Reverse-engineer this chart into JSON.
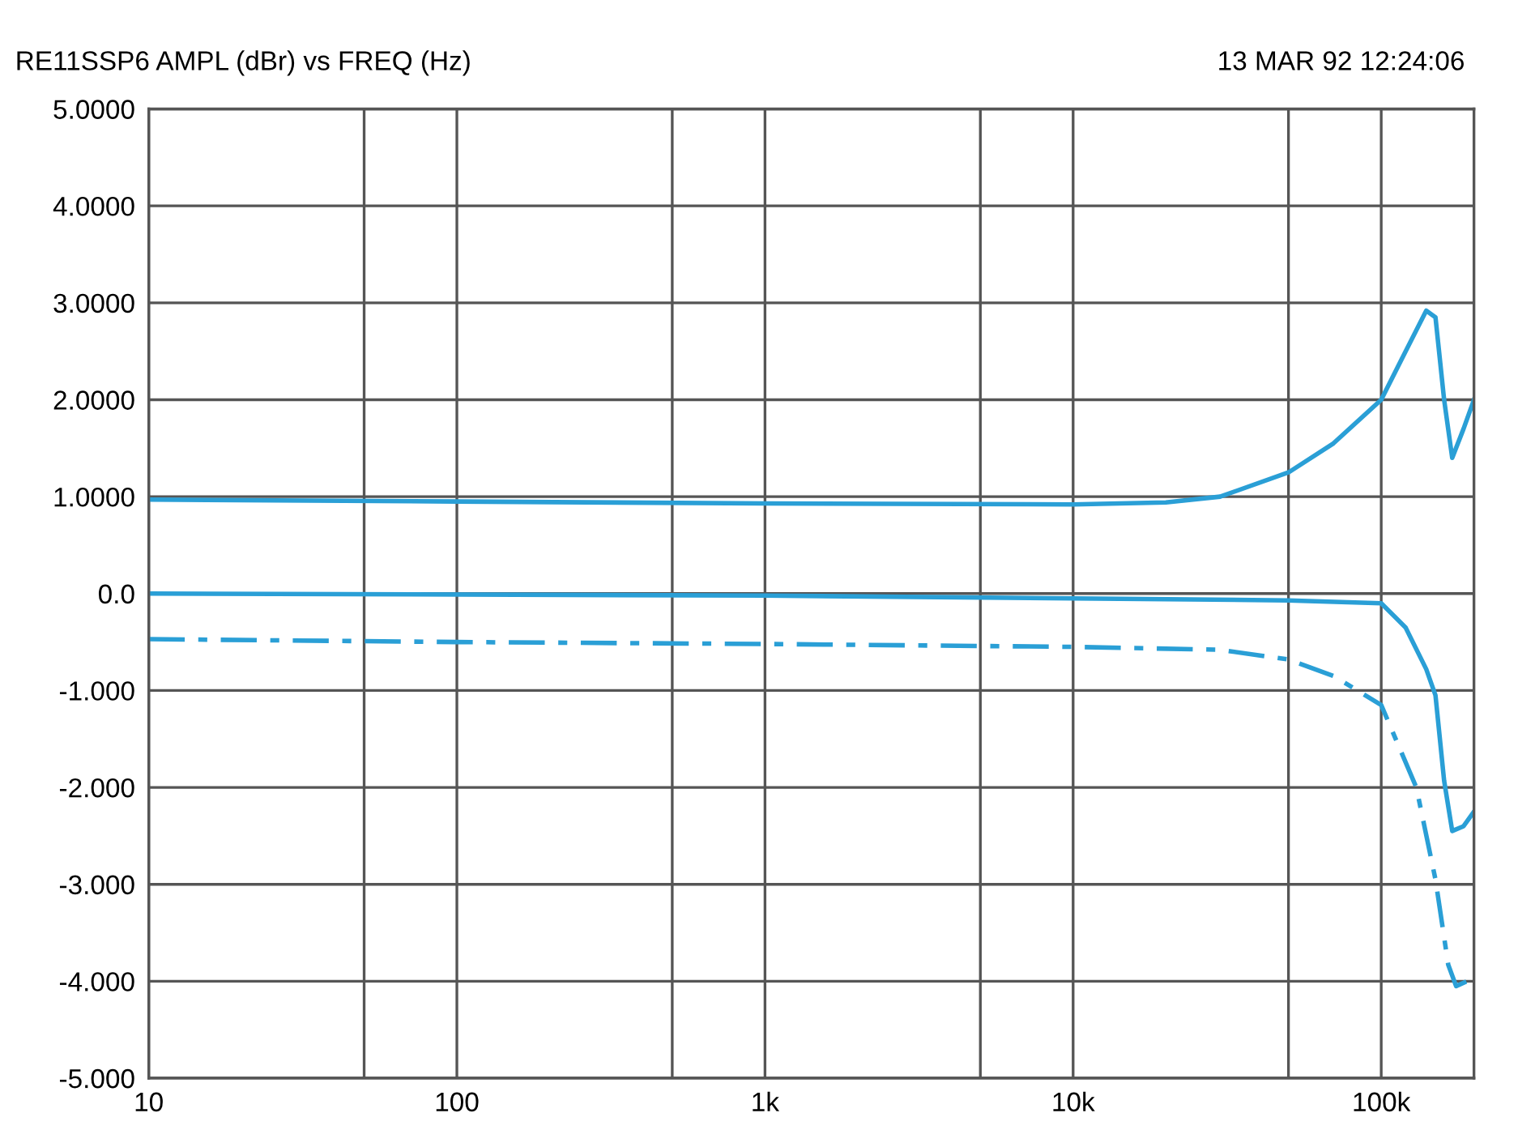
{
  "chart_data": {
    "type": "line",
    "title": "RE11SSP6 AMPL (dBr) vs FREQ (Hz)",
    "annotations": [
      "13 MAR 92 12:24:06"
    ],
    "log": "x",
    "grid": true,
    "xlim": [
      10,
      200000
    ],
    "xticks": [
      10,
      {
        "value": 50,
        "label": null
      },
      {
        "value": 100,
        "label": "100"
      },
      {
        "value": 500,
        "label": null
      },
      {
        "value": 1000,
        "label": "1k"
      },
      {
        "value": 5000,
        "label": null
      },
      {
        "value": 10000,
        "label": "10k"
      },
      {
        "value": 50000,
        "label": null
      },
      {
        "value": 100000,
        "label": "100k"
      },
      {
        "value": 200000,
        "label": null
      }
    ],
    "ylim": [
      -5,
      5
    ],
    "yticks": [
      {
        "value": 5,
        "label": "5.0000"
      },
      {
        "value": 4,
        "label": "4.0000"
      },
      {
        "value": 3,
        "label": "3.0000"
      },
      {
        "value": 2,
        "label": "2.0000"
      },
      {
        "value": 1,
        "label": "1.0000"
      },
      {
        "value": 0,
        "label": "0.0"
      },
      {
        "value": -1,
        "label": "-1.000"
      },
      {
        "value": -2,
        "label": "-2.000"
      },
      {
        "value": -3,
        "label": "-3.000"
      },
      {
        "value": -4,
        "label": "-4.000"
      },
      {
        "value": -5,
        "label": "-5.000"
      }
    ],
    "series": [
      {
        "color": "#2a9fd6",
        "line_style": "solid",
        "x": [
          10,
          100,
          1000,
          10000,
          20000,
          30000,
          50000,
          70000,
          100000,
          120000,
          140000,
          150000,
          160000,
          170000,
          185000,
          200000
        ],
        "values": [
          0.97,
          0.95,
          0.93,
          0.92,
          0.94,
          1.0,
          1.25,
          1.55,
          2.0,
          2.5,
          2.92,
          2.85,
          2.0,
          1.4,
          1.7,
          2.0
        ]
      },
      {
        "color": "#2a9fd6",
        "line_style": "solid",
        "x": [
          10,
          1000,
          10000,
          50000,
          100000,
          120000,
          140000,
          150000,
          160000,
          170000,
          185000,
          200000
        ],
        "values": [
          0.0,
          -0.02,
          -0.05,
          -0.07,
          -0.1,
          -0.35,
          -0.78,
          -1.05,
          -1.93,
          -2.45,
          -2.4,
          -2.25
        ]
      },
      {
        "color": "#2a9fd6",
        "line_style": "dashdot",
        "x": [
          10,
          100,
          1000,
          10000,
          30000,
          50000,
          70000,
          100000,
          130000,
          150000,
          165000,
          175000,
          190000,
          200000
        ],
        "values": [
          -0.47,
          -0.5,
          -0.52,
          -0.55,
          -0.58,
          -0.68,
          -0.85,
          -1.15,
          -2.0,
          -2.95,
          -3.83,
          -4.05,
          -4.0,
          -3.95
        ]
      }
    ]
  }
}
